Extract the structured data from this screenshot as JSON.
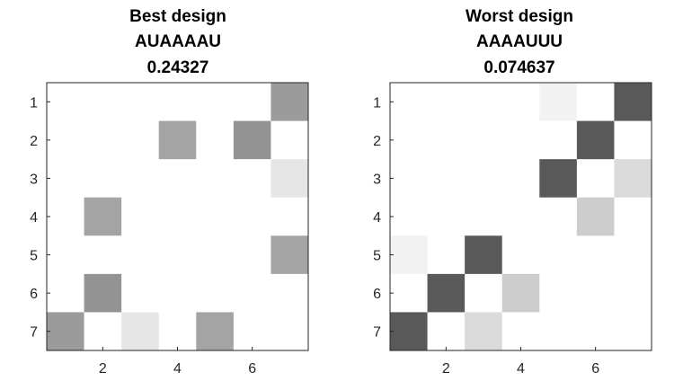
{
  "chart_data": [
    {
      "type": "heatmap",
      "title": [
        "Best design",
        "AUAAAAU",
        "0.24327"
      ],
      "x_ticks": [
        "2",
        "4",
        "6"
      ],
      "y_ticks": [
        "1",
        "2",
        "3",
        "4",
        "5",
        "6",
        "7"
      ],
      "xlim": [
        0.5,
        7.5
      ],
      "ylim": [
        0.5,
        7.5
      ],
      "colormap": "white-to-dark-gray",
      "cells": [
        {
          "row": 1,
          "col": 7,
          "value": 0.6
        },
        {
          "row": 2,
          "col": 4,
          "value": 0.55
        },
        {
          "row": 2,
          "col": 6,
          "value": 0.65
        },
        {
          "row": 3,
          "col": 7,
          "value": 0.15
        },
        {
          "row": 4,
          "col": 2,
          "value": 0.55
        },
        {
          "row": 5,
          "col": 7,
          "value": 0.55
        },
        {
          "row": 6,
          "col": 2,
          "value": 0.65
        },
        {
          "row": 7,
          "col": 1,
          "value": 0.6
        },
        {
          "row": 7,
          "col": 3,
          "value": 0.15
        },
        {
          "row": 7,
          "col": 5,
          "value": 0.55
        }
      ]
    },
    {
      "type": "heatmap",
      "title": [
        "Worst design",
        "AAAAUUU",
        "0.074637"
      ],
      "x_ticks": [
        "2",
        "4",
        "6"
      ],
      "y_ticks": [
        "1",
        "2",
        "3",
        "4",
        "5",
        "6",
        "7"
      ],
      "xlim": [
        0.5,
        7.5
      ],
      "ylim": [
        0.5,
        7.5
      ],
      "colormap": "white-to-dark-gray",
      "cells": [
        {
          "row": 1,
          "col": 5,
          "value": 0.08
        },
        {
          "row": 1,
          "col": 7,
          "value": 1.0
        },
        {
          "row": 2,
          "col": 6,
          "value": 1.0
        },
        {
          "row": 3,
          "col": 5,
          "value": 1.0
        },
        {
          "row": 3,
          "col": 7,
          "value": 0.22
        },
        {
          "row": 4,
          "col": 6,
          "value": 0.3
        },
        {
          "row": 5,
          "col": 1,
          "value": 0.08
        },
        {
          "row": 5,
          "col": 3,
          "value": 1.0
        },
        {
          "row": 6,
          "col": 2,
          "value": 1.0
        },
        {
          "row": 6,
          "col": 4,
          "value": 0.3
        },
        {
          "row": 7,
          "col": 1,
          "value": 1.0
        },
        {
          "row": 7,
          "col": 3,
          "value": 0.22
        }
      ]
    }
  ]
}
